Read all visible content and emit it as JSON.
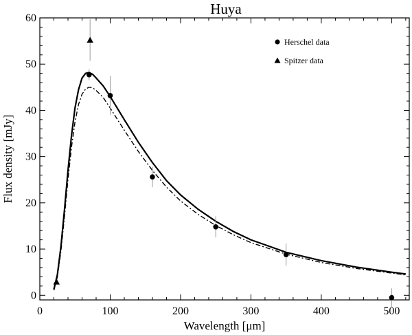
{
  "chart_data": {
    "type": "scatter",
    "title": "Huya",
    "xlabel": "Wavelength [μm]",
    "ylabel": "Flux density [mJy]",
    "xlim": [
      0,
      525
    ],
    "ylim": [
      -1,
      60
    ],
    "xticks": [
      0,
      100,
      200,
      300,
      400,
      500
    ],
    "yticks": [
      0,
      10,
      20,
      30,
      40,
      50,
      60
    ],
    "grid": false,
    "legend_position": "top-right",
    "series": [
      {
        "name": "Herschel data",
        "marker": "circle",
        "x": [
          70,
          100,
          160,
          250,
          350,
          500
        ],
        "y": [
          47.7,
          43.2,
          25.6,
          14.8,
          8.8,
          -0.5
        ],
        "yerr": [
          1.2,
          4.2,
          2.2,
          2.3,
          2.4,
          2.0
        ]
      },
      {
        "name": "Spitzer data",
        "marker": "triangle",
        "x": [
          23.7,
          71.4
        ],
        "y": [
          2.9,
          55.2
        ],
        "yerr": [
          0.3,
          4.5
        ]
      },
      {
        "kind": "model-curve",
        "style": "solid",
        "x": [
          20,
          25,
          30,
          35,
          40,
          45,
          50,
          55,
          60,
          65,
          70,
          75,
          80,
          90,
          100,
          110,
          120,
          140,
          160,
          180,
          200,
          225,
          250,
          275,
          300,
          350,
          400,
          450,
          500,
          520
        ],
        "y": [
          1.3,
          4.5,
          10.5,
          18.5,
          27,
          34.5,
          40.5,
          44.5,
          47,
          48,
          48.2,
          47.8,
          47,
          45.3,
          43,
          40.5,
          38,
          33.1,
          28.7,
          24.8,
          21.7,
          18.6,
          16,
          13.8,
          12,
          9.3,
          7.5,
          6.1,
          5,
          4.6
        ]
      },
      {
        "kind": "model-curve",
        "style": "dash-dot",
        "x": [
          20,
          25,
          30,
          35,
          40,
          45,
          50,
          55,
          60,
          65,
          70,
          75,
          80,
          90,
          100,
          110,
          120,
          140,
          160,
          180,
          200,
          225,
          250,
          275,
          300,
          350,
          400,
          450,
          500,
          520
        ],
        "y": [
          1.1,
          4,
          9.5,
          17,
          25,
          32,
          37.5,
          41.3,
          43.5,
          44.6,
          45,
          44.9,
          44.3,
          42.8,
          40.5,
          38.1,
          35.7,
          31.1,
          27,
          23.4,
          20.4,
          17.5,
          15.1,
          13.1,
          11.4,
          8.9,
          7.1,
          5.8,
          4.8,
          4.4
        ]
      }
    ]
  }
}
